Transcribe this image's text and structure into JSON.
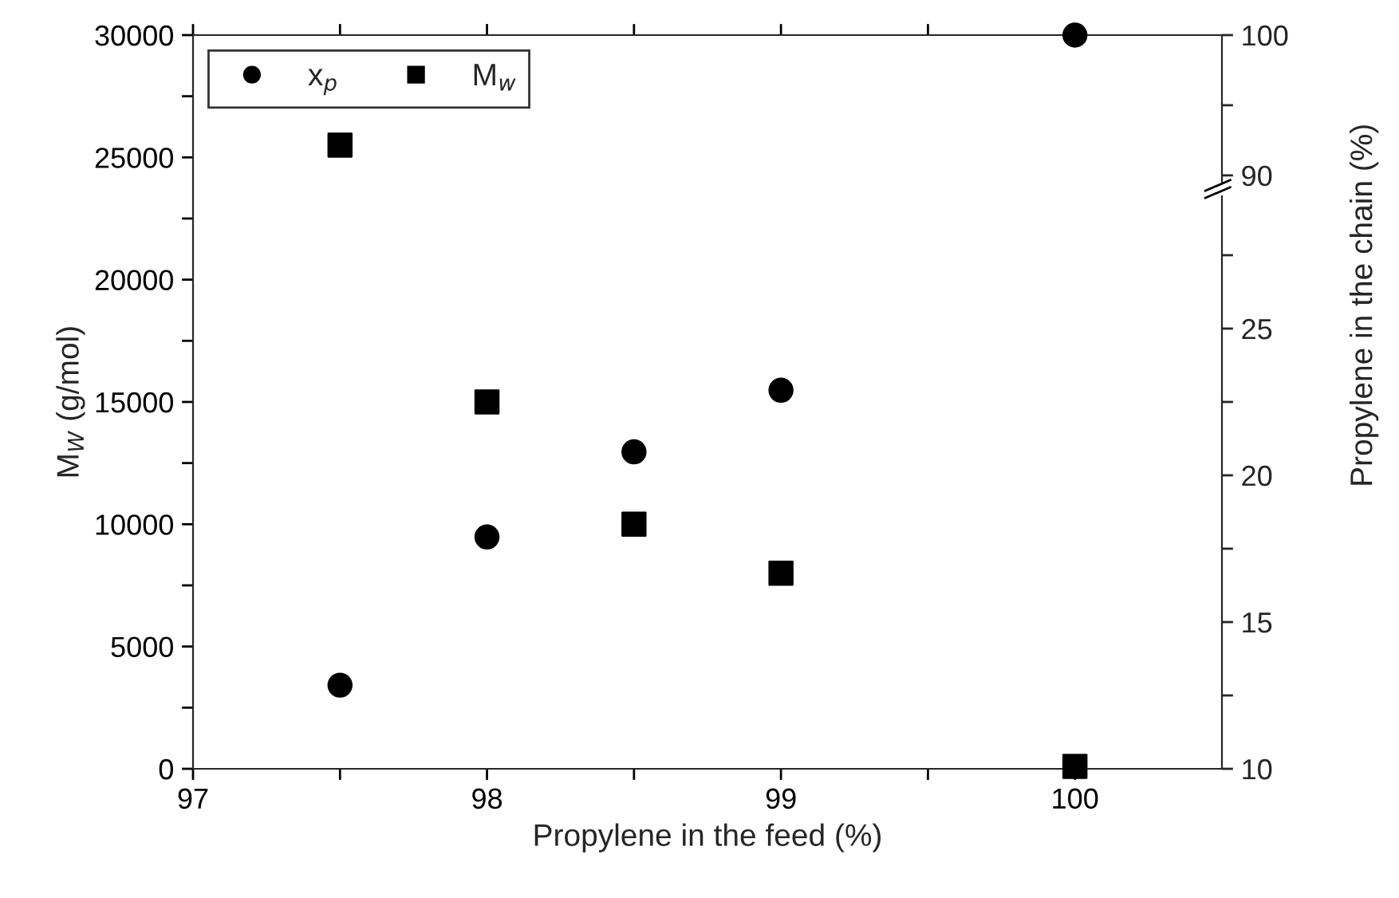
{
  "chart_data": {
    "type": "scatter",
    "xlabel": "Propylene in the feed (%)",
    "ylabel": "M$_{W}$ (g/mol)",
    "y2label": "Propylene in the chain (%)",
    "x": [
      97.5,
      98,
      98.5,
      99,
      100
    ],
    "series": [
      {
        "name": "x$_{p}$",
        "color": "#000000",
        "marker": "circle",
        "axis": "y2",
        "x": [
          97.5,
          98,
          98.5,
          99
        ],
        "values": [
          12.85,
          17.9,
          20.8,
          22.9
        ]
      },
      {
        "name": "M$_{w}$",
        "color": "#000000",
        "marker": "square",
        "values": [
          25500,
          15000,
          10000,
          8000,
          100
        ]
      },
      {
        "color": "#000000",
        "marker": "circle",
        "axis": "y3",
        "x": [
          100
        ],
        "values": [
          100
        ]
      }
    ],
    "xlim": [
      97,
      100.5
    ],
    "xticks": [
      97,
      {
        "value": 97.5,
        "label": null
      },
      98,
      {
        "value": 98.5,
        "label": null
      },
      99,
      {
        "value": 99.5,
        "label": null
      },
      100
    ],
    "ylim": [
      0,
      30000
    ],
    "yticks": [
      0,
      {
        "value": 2500,
        "label": null
      },
      5000,
      {
        "value": 7500,
        "label": null
      },
      10000,
      {
        "value": 12500,
        "label": null
      },
      15000,
      {
        "value": 17500,
        "label": null
      },
      20000,
      {
        "value": 22500,
        "label": null
      },
      25000,
      {
        "value": 27500,
        "label": null
      },
      30000
    ],
    "y2lim": [
      10,
      35
    ],
    "y2ticks": [
      10,
      {
        "value": 12.5,
        "label": null
      },
      15,
      {
        "value": 17.5,
        "label": null
      },
      20,
      {
        "value": 22.5,
        "label": null
      },
      25,
      {
        "value": 27.5,
        "label": null
      }
    ],
    "y3lim": [
      47.7,
      100
    ],
    "y3ticks": [
      90,
      {
        "value": 95,
        "label": null
      },
      100
    ],
    "legend": "top left",
    "grid": false
  }
}
